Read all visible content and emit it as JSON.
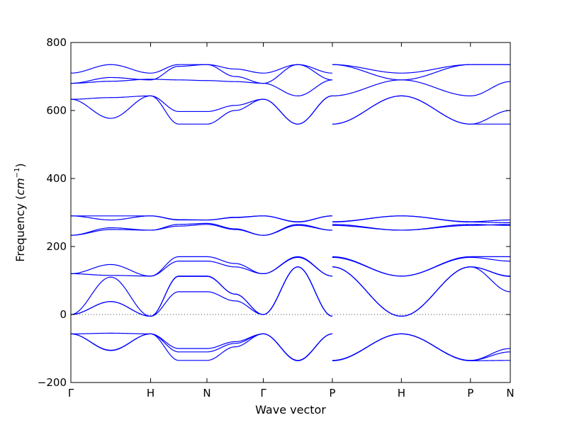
{
  "chart_data": {
    "type": "line",
    "title": "",
    "xlabel": "Wave vector",
    "ylabel": "Frequency",
    "ylabel_unit": "cm",
    "ylabel_unit_exp": "−1",
    "ylabel_open": "(",
    "ylabel_close": ")",
    "ylim": [
      -200,
      800
    ],
    "yticks": [
      -200,
      0,
      200,
      400,
      600,
      800
    ],
    "xticks": [
      {
        "label": "Γ",
        "x": 0
      },
      {
        "label": "H",
        "x": 1
      },
      {
        "label": "N",
        "x": 1.707
      },
      {
        "label": "Γ",
        "x": 2.414
      },
      {
        "label": "P",
        "x": 3.28
      },
      {
        "label": "H",
        "x": 4.146
      },
      {
        "label": "P",
        "x": 5.012
      },
      {
        "label": "N",
        "x": 5.512
      }
    ],
    "xlim": [
      0,
      5.512
    ],
    "zero_line": true,
    "line_color": "#0000ff",
    "segments": [
      {
        "from": 0,
        "to": 1,
        "series": [
          [
            710,
            735,
            710
          ],
          [
            680,
            697,
            690
          ],
          [
            680,
            686,
            692
          ],
          [
            633,
            638,
            643
          ],
          [
            633,
            577,
            643
          ],
          [
            290,
            290,
            290
          ],
          [
            290,
            278,
            290
          ],
          [
            233,
            250,
            248
          ],
          [
            233,
            255,
            248
          ],
          [
            120,
            147,
            113
          ],
          [
            120,
            115,
            113
          ],
          [
            0,
            110,
            -5
          ],
          [
            0,
            38,
            -5
          ],
          [
            0,
            38,
            -5
          ],
          [
            -57,
            -55,
            -57
          ],
          [
            -57,
            -105,
            -57
          ],
          [
            -57,
            -106,
            -57
          ]
        ]
      },
      {
        "from": 1,
        "to": 1.707,
        "series": [
          [
            710,
            735,
            735
          ],
          [
            690,
            730,
            735
          ],
          [
            692,
            690,
            688
          ],
          [
            643,
            597,
            597
          ],
          [
            643,
            560,
            560
          ],
          [
            290,
            278,
            278
          ],
          [
            290,
            279,
            278
          ],
          [
            248,
            260,
            265
          ],
          [
            248,
            265,
            268
          ],
          [
            113,
            170,
            170
          ],
          [
            113,
            157,
            157
          ],
          [
            -5,
            113,
            113
          ],
          [
            -5,
            112,
            112
          ],
          [
            -5,
            67,
            67
          ],
          [
            -57,
            -100,
            -100
          ],
          [
            -57,
            -110,
            -110
          ],
          [
            -57,
            -135,
            -135
          ]
        ]
      },
      {
        "from": 1.707,
        "to": 2.414,
        "series": [
          [
            735,
            722,
            710
          ],
          [
            735,
            700,
            680
          ],
          [
            688,
            685,
            680
          ],
          [
            597,
            615,
            633
          ],
          [
            560,
            600,
            633
          ],
          [
            278,
            285,
            290
          ],
          [
            278,
            286,
            290
          ],
          [
            265,
            250,
            233
          ],
          [
            268,
            252,
            233
          ],
          [
            170,
            150,
            120
          ],
          [
            157,
            140,
            120
          ],
          [
            113,
            60,
            0
          ],
          [
            112,
            60,
            0
          ],
          [
            67,
            40,
            0
          ],
          [
            -100,
            -80,
            -57
          ],
          [
            -110,
            -85,
            -57
          ],
          [
            -135,
            -95,
            -57
          ]
        ]
      },
      {
        "from": 2.414,
        "to": 3.28,
        "series": [
          [
            710,
            735,
            710
          ],
          [
            680,
            735,
            690
          ],
          [
            680,
            643,
            690
          ],
          [
            633,
            560,
            643
          ],
          [
            633,
            560,
            643
          ],
          [
            290,
            273,
            290
          ],
          [
            290,
            272,
            290
          ],
          [
            233,
            262,
            248
          ],
          [
            233,
            265,
            248
          ],
          [
            120,
            170,
            113
          ],
          [
            120,
            168,
            113
          ],
          [
            0,
            140,
            -5
          ],
          [
            0,
            140,
            -5
          ],
          [
            0,
            140,
            -5
          ],
          [
            -57,
            -135,
            -57
          ],
          [
            -57,
            -135,
            -57
          ],
          [
            -57,
            -136,
            -57
          ]
        ]
      },
      {
        "from": 4.146,
        "to": 5.012,
        "series": [
          [
            710,
            735
          ],
          [
            690,
            735
          ],
          [
            690,
            643
          ],
          [
            643,
            560
          ],
          [
            643,
            560
          ],
          [
            290,
            273
          ],
          [
            290,
            272
          ],
          [
            248,
            262
          ],
          [
            248,
            265
          ],
          [
            113,
            170
          ],
          [
            113,
            168
          ],
          [
            -5,
            140
          ],
          [
            -5,
            140
          ],
          [
            -5,
            140
          ],
          [
            -57,
            -135
          ],
          [
            -57,
            -135
          ],
          [
            -57,
            -136
          ]
        ]
      },
      {
        "from": 5.012,
        "to": 5.512,
        "series": [
          [
            735,
            735
          ],
          [
            735,
            735
          ],
          [
            643,
            685
          ],
          [
            560,
            600
          ],
          [
            560,
            560
          ],
          [
            273,
            278
          ],
          [
            272,
            270
          ],
          [
            262,
            265
          ],
          [
            265,
            262
          ],
          [
            170,
            170
          ],
          [
            168,
            157
          ],
          [
            140,
            113
          ],
          [
            140,
            67
          ],
          [
            140,
            112
          ],
          [
            -135,
            -100
          ],
          [
            -135,
            -110
          ],
          [
            -136,
            -135
          ]
        ]
      }
    ]
  }
}
